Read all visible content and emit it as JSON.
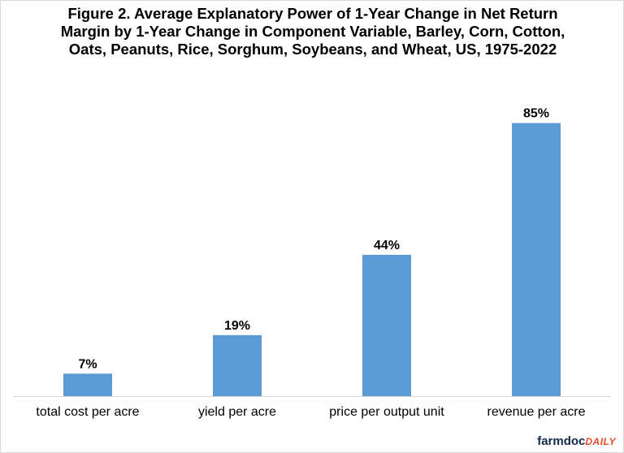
{
  "chart_data": {
    "type": "bar",
    "title": "Figure 2. Average Explanatory Power of 1-Year Change in Net Return Margin by 1-Year Change in Component Variable, Barley, Corn, Cotton, Oats, Peanuts, Rice, Sorghum, Soybeans, and Wheat, US, 1975-2022",
    "categories": [
      "total cost per acre",
      "yield per acre",
      "price per output unit",
      "revenue per acre"
    ],
    "values": [
      7,
      19,
      44,
      85
    ],
    "value_labels": [
      "7%",
      "19%",
      "44%",
      "85%"
    ],
    "unit": "%",
    "ylim": [
      0,
      95
    ],
    "grid": false,
    "legend": "none",
    "bar_color": "#5b9bd5"
  },
  "branding": {
    "part1": "farmdoc",
    "part2": "DAILY"
  }
}
